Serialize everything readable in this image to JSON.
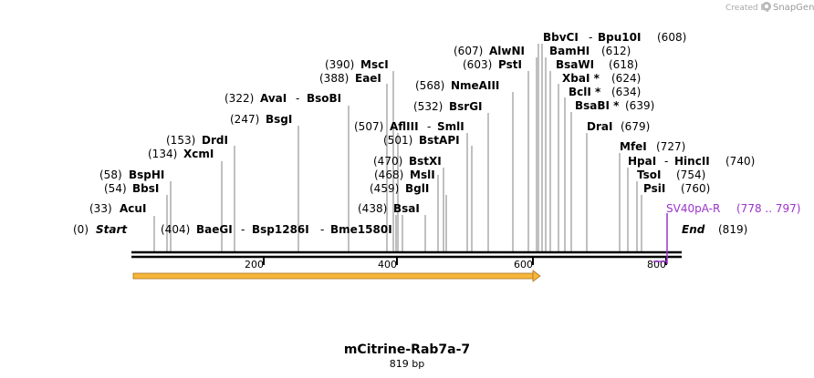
{
  "credit": {
    "prefix": "Created by",
    "brand": "SnapGene"
  },
  "title": "mCitrine-Rab7a-7",
  "length_label": "819 bp",
  "colors": {
    "backbone": "#000000",
    "leader": "#808080",
    "primer": "#9b33cc",
    "feature_fill": "#f5b63a",
    "feature_stroke": "#b07420"
  },
  "ends": {
    "start": {
      "pos": "(0)",
      "name": "Start"
    },
    "end": {
      "name": "End",
      "pos": "(819)"
    }
  },
  "ticks": [
    "200",
    "400",
    "600",
    "800"
  ],
  "enzymes": [
    {
      "id": "acui",
      "pos": "(33)",
      "name": "AcuI"
    },
    {
      "id": "bbsi",
      "pos": "(54)",
      "name": "BbsI"
    },
    {
      "id": "bsphi",
      "pos": "(58)",
      "name": "BspHI"
    },
    {
      "id": "xcmi",
      "pos": "(134)",
      "name": "XcmI"
    },
    {
      "id": "drdi",
      "pos": "(153)",
      "name": "DrdI"
    },
    {
      "id": "bsgi",
      "pos": "(247)",
      "name": "BsgI"
    },
    {
      "id": "avai",
      "pos": "(322)",
      "name": "AvaI",
      "alt": "BsoBI"
    },
    {
      "id": "ecoi",
      "pos": "(388)",
      "name": "EaeI"
    },
    {
      "id": "msci",
      "pos": "(390)",
      "name": "MscI"
    },
    {
      "id": "baegi",
      "pos": "(404)",
      "name": "BaeGI",
      "alt": "Bsp1286I",
      "alt2": "Bme1580I"
    },
    {
      "id": "bsai",
      "pos": "(438)",
      "name": "BsaI"
    },
    {
      "id": "bgli",
      "pos": "(459)",
      "name": "BglI"
    },
    {
      "id": "msli",
      "pos": "(468)",
      "name": "MslI"
    },
    {
      "id": "bstxi",
      "pos": "(470)",
      "name": "BstXI"
    },
    {
      "id": "bstapi",
      "pos": "(501)",
      "name": "BstAPI"
    },
    {
      "id": "afliii",
      "pos": "(507)",
      "name": "AflIII",
      "alt": "SmlI"
    },
    {
      "id": "bsrgi",
      "pos": "(532)",
      "name": "BsrGI"
    },
    {
      "id": "nmeaiii",
      "pos": "(568)",
      "name": "NmeAIII"
    },
    {
      "id": "psti",
      "pos": "(603)",
      "name": "PstI"
    },
    {
      "id": "alwni",
      "pos": "(607)",
      "name": "AlwNI"
    },
    {
      "id": "bbvci",
      "name": "BbvCI",
      "alt": "Bpu10I",
      "pos": "(608)"
    },
    {
      "id": "bamhi",
      "name": "BamHI",
      "pos": "(612)"
    },
    {
      "id": "bsawi",
      "name": "BsaWI",
      "pos": "(618)"
    },
    {
      "id": "xbai",
      "name": "XbaI *",
      "pos": "(624)"
    },
    {
      "id": "bcli",
      "name": "BclI *",
      "pos": "(634)"
    },
    {
      "id": "bsabi",
      "name": "BsaBI *",
      "pos": "(639)"
    },
    {
      "id": "drai",
      "name": "DraI",
      "pos": "(679)"
    },
    {
      "id": "mfei",
      "name": "MfeI",
      "pos": "(727)"
    },
    {
      "id": "hpai",
      "name": "HpaI",
      "alt": "HincII",
      "pos": "(740)"
    },
    {
      "id": "tsoi",
      "name": "TsoI",
      "pos": "(754)"
    },
    {
      "id": "psii",
      "name": "PsiI",
      "pos": "(760)"
    }
  ],
  "primer": {
    "name": "SV40pA-R",
    "range": "(778 .. 797)"
  }
}
